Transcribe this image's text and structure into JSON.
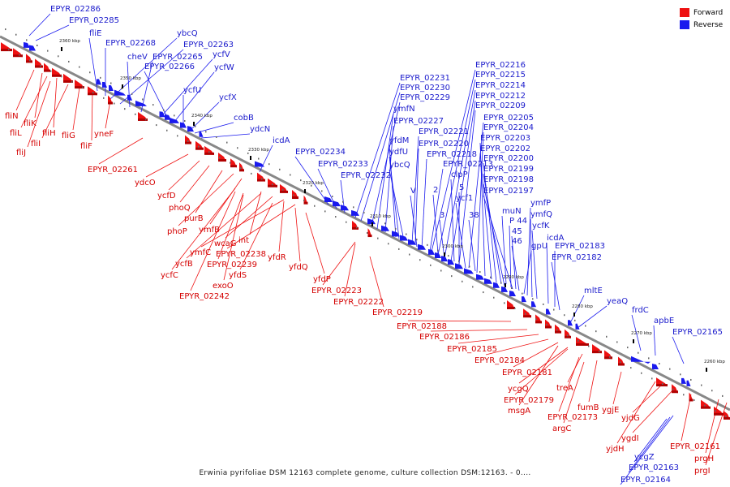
{
  "legend": [
    {
      "label": "Forward",
      "color": "#ee1111"
    },
    {
      "label": "Reverse",
      "color": "#1a1aee"
    }
  ],
  "caption": "Erwinia pyrifoliae DSM 12163 complete genome, culture collection DSM:12163. - 0....",
  "colors": {
    "forward": "#ee1111",
    "reverse": "#1a1aee",
    "backbone": "#888888"
  },
  "ticks": [
    "2360 kbp",
    "2350 kbp",
    "2340 kbp",
    "2330 kbp",
    "2320 kbp",
    "2310 kbp",
    "2300 kbp",
    "2290 kbp",
    "2280 kbp",
    "2270 kbp",
    "2260 kbp"
  ],
  "reverse_labels": [
    "EPYR_02286",
    "EPYR_02285",
    "fliE",
    "EPYR_02268",
    "ybcQ",
    "EPYR_02263",
    "cheV",
    "EPYR_02265",
    "ycfV",
    "EPYR_02266",
    "ycfW",
    "ycfU",
    "ycfX",
    "cobB",
    "ydcN",
    "icdA",
    "EPYR_02234",
    "EPYR_02233",
    "EPYR_02232",
    "EPYR_02231",
    "EPYR_02230",
    "EPYR_02229",
    "ymfN",
    "EPYR_02227",
    "yfdM",
    "ydfU",
    "ybcQ",
    "EPYR_02221",
    "EPYR_02220",
    "EPYR_02218",
    "EPYR_02213",
    "EPYR_02216",
    "EPYR_02215",
    "EPYR_02214",
    "EPYR_02212",
    "EPYR_02209",
    "EPYR_02205",
    "EPYR_02204",
    "EPYR_02203",
    "EPYR_02202",
    "EPYR_02200",
    "EPYR_02199",
    "EPYR_02198",
    "EPYR_02197",
    "V",
    "2",
    "3",
    "clpP",
    "5",
    "ycf1",
    "38",
    "muN",
    "P 44",
    "45",
    "46",
    "gpU",
    "ymfP",
    "ymfQ",
    "ycfK",
    "icdA",
    "EPYR_02183",
    "EPYR_02182",
    "mltE",
    "yeaQ",
    "frdC",
    "apbE",
    "EPYR_02165",
    "EPYR_02164",
    "EPYR_02163",
    "ycgZ"
  ],
  "forward_labels": [
    "fliN",
    "fliK",
    "fliL",
    "fliH",
    "fliJ",
    "fliI",
    "fliG",
    "fliF",
    "yneF",
    "EPYR_02261",
    "ydcO",
    "ycfD",
    "phoQ",
    "purB",
    "phoP",
    "ymfB",
    "int",
    "wcaG",
    "ymfC",
    "EPYR_02238",
    "ycfB",
    "EPYR_02239",
    "yfdR",
    "ycfC",
    "yfdS",
    "exoO",
    "yfdQ",
    "EPYR_02242",
    "yfdP",
    "EPYR_02223",
    "EPYR_02222",
    "EPYR_02219",
    "EPYR_02188",
    "EPYR_02186",
    "EPYR_02185",
    "EPYR_02184",
    "EPYR_02181",
    "ycgQ",
    "treA",
    "EPYR_02179",
    "msgA",
    "fumB",
    "EPYR_02173",
    "ygjE",
    "argC",
    "yjdG",
    "ygdI",
    "yjdH",
    "EPYR_02161",
    "prgH",
    "prgI"
  ]
}
